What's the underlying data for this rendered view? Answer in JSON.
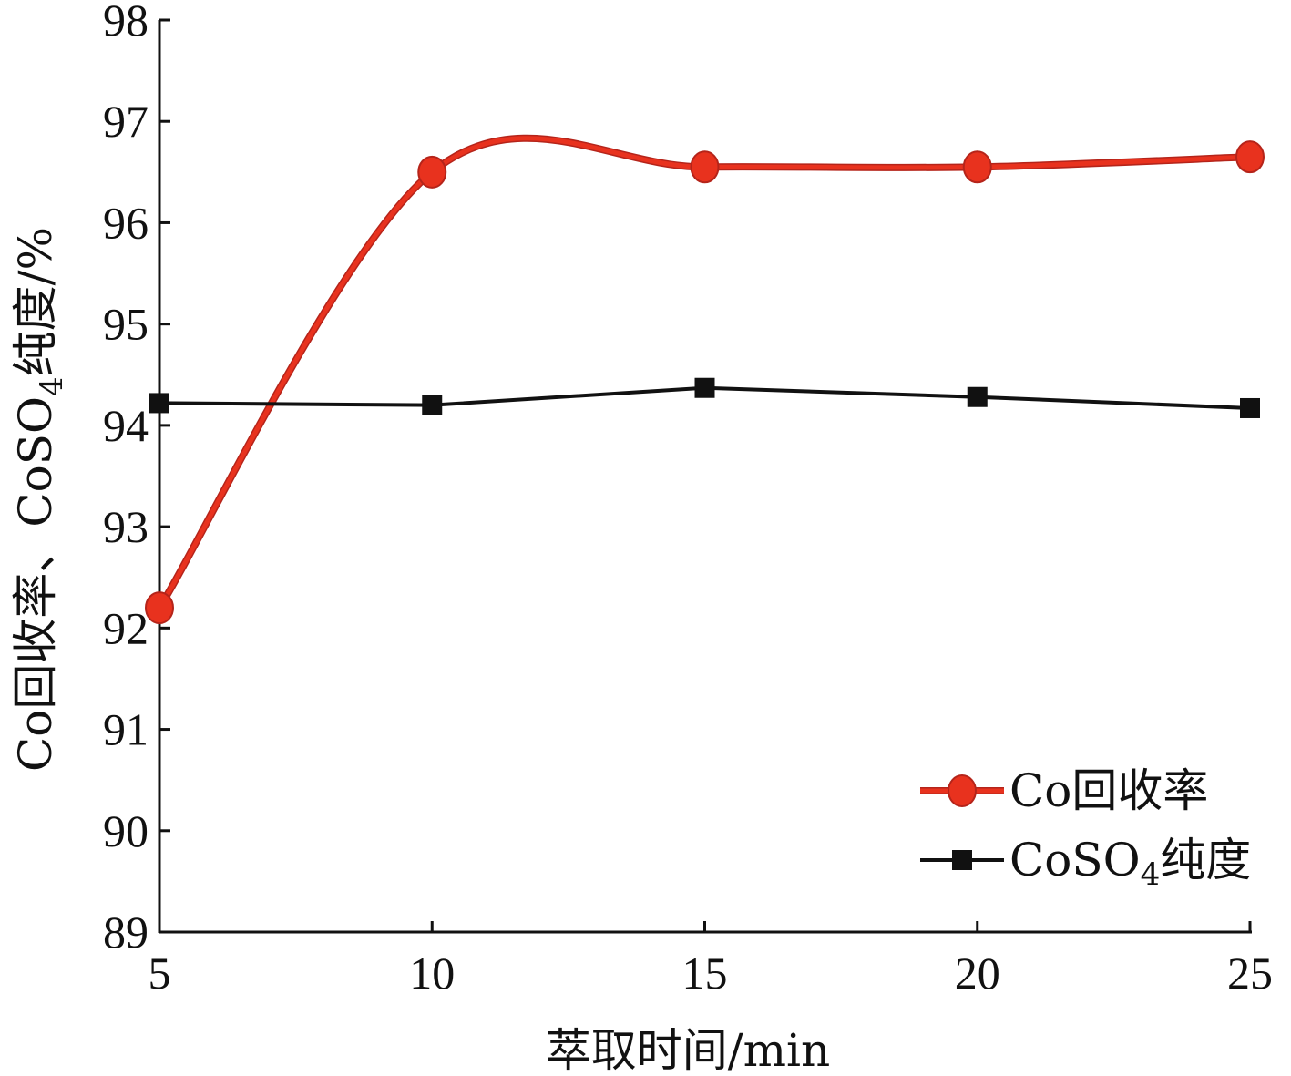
{
  "chart_data": {
    "type": "line",
    "x": [
      5,
      10,
      15,
      20,
      25
    ],
    "xlabel": "萃取时间/min",
    "ylabel": "Co回收率、CoSO4纯度/%",
    "ylabel_parts": {
      "before_sub": "Co回收率、CoSO",
      "sub": "4",
      "after_sub": "纯度/%"
    },
    "xlim": [
      5,
      25
    ],
    "ylim": [
      89,
      98
    ],
    "xticks": [
      5,
      10,
      15,
      20,
      25
    ],
    "yticks": [
      89,
      90,
      91,
      92,
      93,
      94,
      95,
      96,
      97,
      98
    ],
    "grid": false,
    "legend_position": "bottom-right",
    "series": [
      {
        "name": "Co回收率",
        "name_parts": {
          "before_sub": "Co回收率",
          "sub": "",
          "after_sub": ""
        },
        "values": [
          92.2,
          96.5,
          96.55,
          96.55,
          96.65
        ],
        "color": "#e8321e",
        "marker": "circle",
        "smooth": true
      },
      {
        "name": "CoSO4纯度",
        "name_parts": {
          "before_sub": "CoSO",
          "sub": "4",
          "after_sub": "纯度"
        },
        "values": [
          94.22,
          94.2,
          94.37,
          94.28,
          94.17
        ],
        "color": "#111111",
        "marker": "square",
        "smooth": false
      }
    ]
  }
}
